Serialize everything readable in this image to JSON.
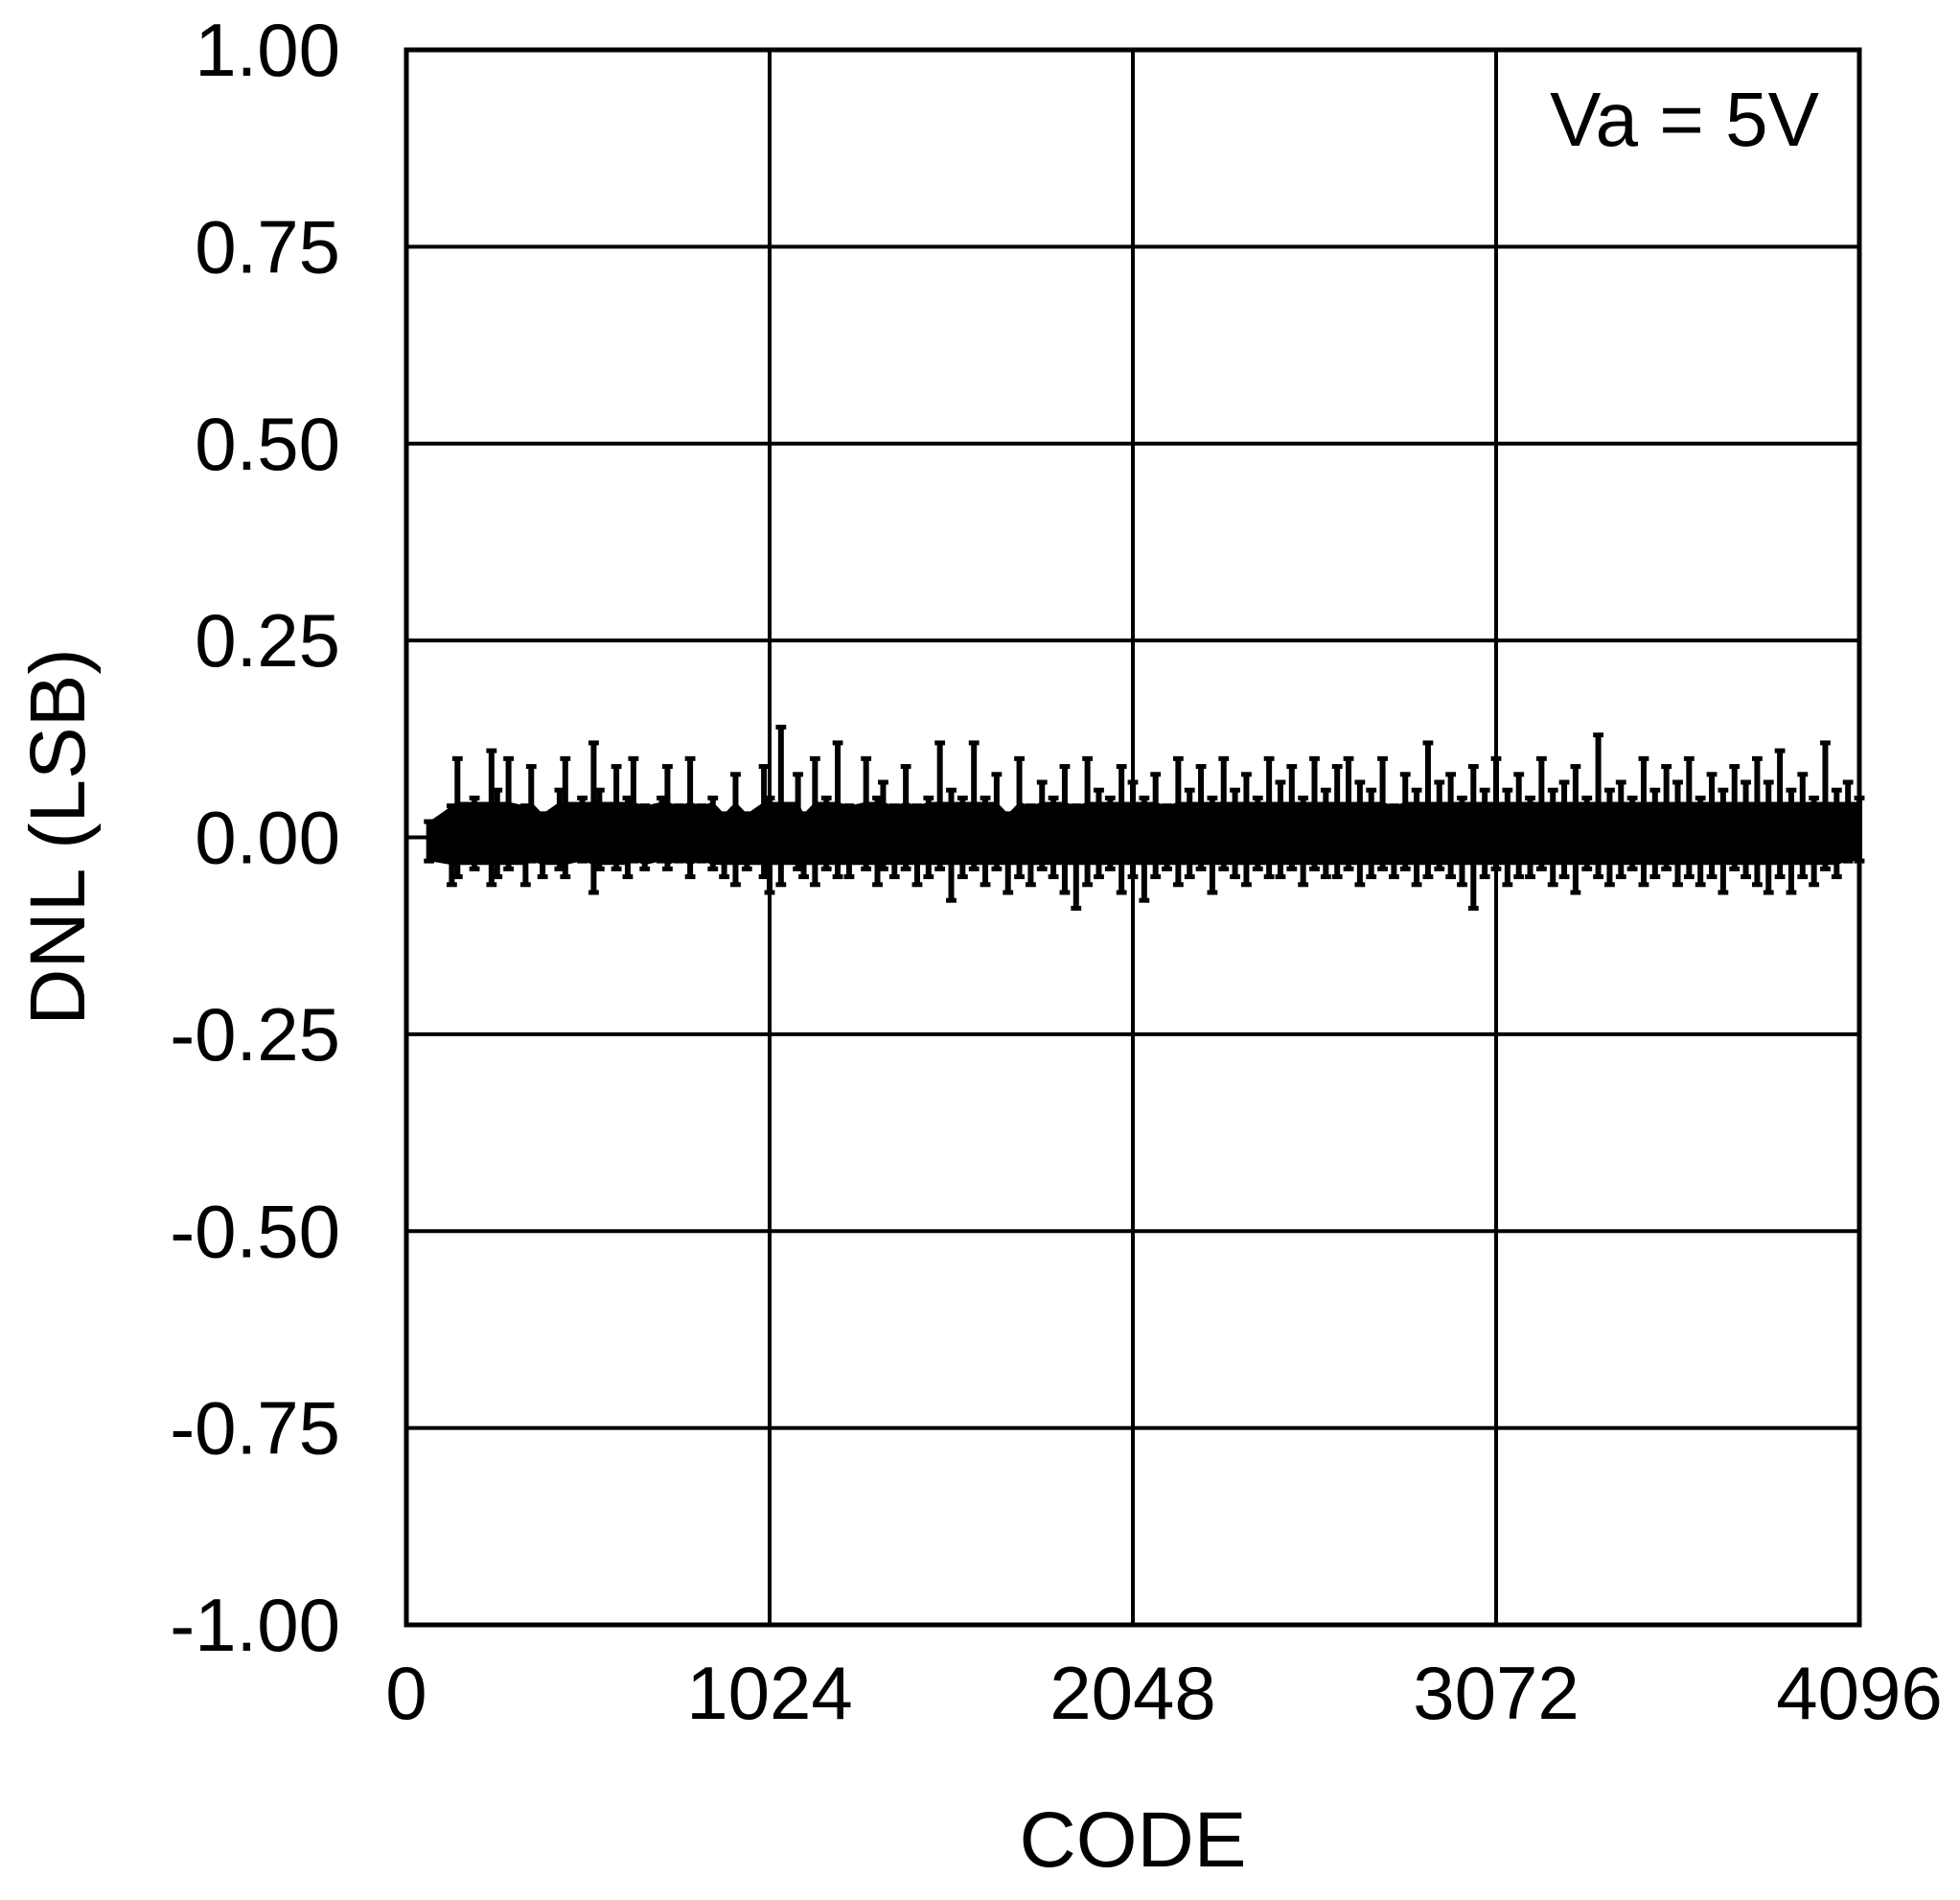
{
  "chart_data": {
    "type": "line",
    "title": "",
    "xlabel": "CODE",
    "ylabel": "DNL (LSB)",
    "xlim": [
      0,
      4096
    ],
    "ylim": [
      -1.0,
      1.0
    ],
    "x_ticks": [
      0,
      1024,
      2048,
      3072,
      4096
    ],
    "x_tick_labels": [
      "0",
      "1024",
      "2048",
      "3072",
      "4096"
    ],
    "y_ticks": [
      1.0,
      0.75,
      0.5,
      0.25,
      0.0,
      -0.25,
      -0.5,
      -0.75,
      -1.0
    ],
    "y_tick_labels": [
      "1.00",
      "0.75",
      "0.50",
      "0.25",
      "0.00",
      "-0.25",
      "-0.50",
      "-0.75",
      "-1.00"
    ],
    "grid": true,
    "annotation": "Va = 5V",
    "series": [
      {
        "color": "#000000",
        "x": [
          64,
          128,
          144,
          192,
          240,
          256,
          288,
          336,
          352,
          384,
          432,
          448,
          496,
          528,
          544,
          592,
          624,
          640,
          672,
          720,
          736,
          768,
          800,
          832,
          864,
          896,
          928,
          960,
          1008,
          1024,
          1056,
          1104,
          1120,
          1152,
          1184,
          1216,
          1248,
          1296,
          1328,
          1344,
          1376,
          1408,
          1440,
          1472,
          1504,
          1536,
          1568,
          1600,
          1632,
          1664,
          1696,
          1728,
          1760,
          1792,
          1824,
          1856,
          1888,
          1920,
          1952,
          1984,
          2016,
          2048,
          2080,
          2112,
          2144,
          2176,
          2208,
          2240,
          2272,
          2304,
          2336,
          2368,
          2400,
          2432,
          2464,
          2496,
          2528,
          2560,
          2592,
          2624,
          2656,
          2688,
          2720,
          2752,
          2784,
          2816,
          2848,
          2880,
          2912,
          2944,
          2976,
          3008,
          3040,
          3072,
          3104,
          3136,
          3168,
          3200,
          3232,
          3264,
          3296,
          3328,
          3360,
          3392,
          3424,
          3456,
          3488,
          3520,
          3552,
          3584,
          3616,
          3648,
          3680,
          3712,
          3744,
          3776,
          3808,
          3840,
          3872,
          3904,
          3936,
          3968,
          4000,
          4032,
          4064,
          4096
        ],
        "y_max": [
          0.02,
          0.04,
          0.1,
          0.05,
          0.11,
          0.06,
          0.1,
          0.04,
          0.09,
          0.03,
          0.06,
          0.1,
          0.05,
          0.12,
          0.06,
          0.09,
          0.05,
          0.1,
          0.04,
          0.05,
          0.09,
          0.04,
          0.1,
          0.04,
          0.05,
          0.03,
          0.08,
          0.03,
          0.09,
          0.05,
          0.14,
          0.08,
          0.03,
          0.1,
          0.05,
          0.12,
          0.04,
          0.1,
          0.05,
          0.07,
          0.04,
          0.09,
          0.04,
          0.05,
          0.12,
          0.06,
          0.05,
          0.12,
          0.05,
          0.08,
          0.03,
          0.1,
          0.04,
          0.07,
          0.05,
          0.09,
          0.04,
          0.1,
          0.06,
          0.05,
          0.09,
          0.07,
          0.05,
          0.08,
          0.04,
          0.1,
          0.06,
          0.09,
          0.05,
          0.1,
          0.06,
          0.08,
          0.05,
          0.1,
          0.07,
          0.09,
          0.05,
          0.1,
          0.06,
          0.09,
          0.1,
          0.07,
          0.06,
          0.1,
          0.04,
          0.08,
          0.06,
          0.12,
          0.07,
          0.08,
          0.05,
          0.09,
          0.06,
          0.1,
          0.06,
          0.08,
          0.05,
          0.1,
          0.06,
          0.07,
          0.09,
          0.05,
          0.13,
          0.06,
          0.07,
          0.05,
          0.1,
          0.06,
          0.09,
          0.07,
          0.1,
          0.05,
          0.08,
          0.06,
          0.09,
          0.07,
          0.1,
          0.07,
          0.11,
          0.06,
          0.08,
          0.05,
          0.12,
          0.06,
          0.07,
          0.05
        ],
        "y_min": [
          -0.03,
          -0.06,
          -0.05,
          -0.04,
          -0.06,
          -0.05,
          -0.04,
          -0.06,
          -0.03,
          -0.05,
          -0.04,
          -0.05,
          -0.03,
          -0.07,
          -0.04,
          -0.04,
          -0.05,
          -0.03,
          -0.04,
          -0.03,
          -0.04,
          -0.03,
          -0.05,
          -0.03,
          -0.04,
          -0.05,
          -0.06,
          -0.04,
          -0.05,
          -0.07,
          -0.06,
          -0.04,
          -0.05,
          -0.06,
          -0.04,
          -0.05,
          -0.05,
          -0.04,
          -0.06,
          -0.04,
          -0.05,
          -0.04,
          -0.06,
          -0.05,
          -0.04,
          -0.08,
          -0.05,
          -0.04,
          -0.06,
          -0.04,
          -0.07,
          -0.05,
          -0.06,
          -0.04,
          -0.05,
          -0.07,
          -0.09,
          -0.06,
          -0.05,
          -0.04,
          -0.07,
          -0.05,
          -0.08,
          -0.05,
          -0.04,
          -0.06,
          -0.05,
          -0.04,
          -0.07,
          -0.04,
          -0.05,
          -0.06,
          -0.04,
          -0.05,
          -0.05,
          -0.04,
          -0.06,
          -0.04,
          -0.05,
          -0.05,
          -0.04,
          -0.06,
          -0.05,
          -0.04,
          -0.05,
          -0.04,
          -0.06,
          -0.05,
          -0.04,
          -0.05,
          -0.06,
          -0.09,
          -0.05,
          -0.04,
          -0.06,
          -0.05,
          -0.05,
          -0.04,
          -0.06,
          -0.05,
          -0.07,
          -0.04,
          -0.05,
          -0.06,
          -0.05,
          -0.04,
          -0.06,
          -0.05,
          -0.04,
          -0.06,
          -0.05,
          -0.06,
          -0.05,
          -0.07,
          -0.04,
          -0.05,
          -0.06,
          -0.07,
          -0.05,
          -0.07,
          -0.05,
          -0.06,
          -0.04,
          -0.05,
          -0.03,
          -0.03
        ]
      }
    ]
  }
}
